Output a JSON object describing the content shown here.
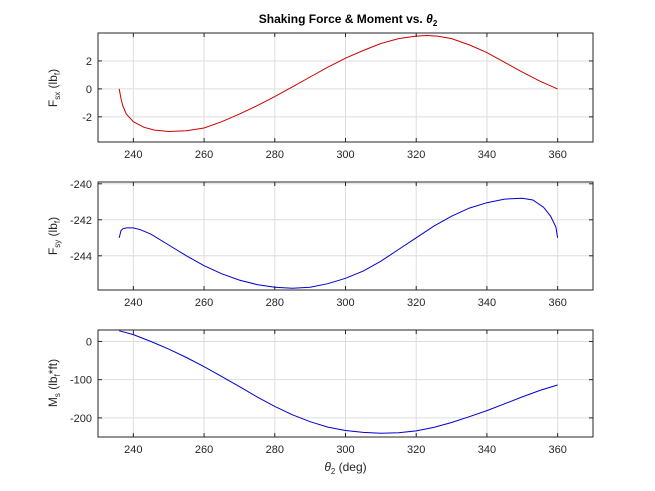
{
  "figure": {
    "title_main": "Shaking Force & Moment vs. ",
    "title_sym": "θ",
    "title_sub": "2"
  },
  "chart_data": [
    {
      "type": "line",
      "ylabel": {
        "main": "F",
        "sub": "sx",
        "rest_open": " (lb",
        "rest_sub": "f",
        "rest_close": ")"
      },
      "xlim": [
        230,
        370
      ],
      "ylim": [
        -3.8,
        4
      ],
      "yticks": [
        -2,
        0,
        2
      ],
      "ytick_labels": [
        "-2",
        "0",
        "2"
      ],
      "xticks": [
        240,
        260,
        280,
        300,
        320,
        340,
        360
      ],
      "xtick_labels": [
        "240",
        "260",
        "280",
        "300",
        "320",
        "340",
        "360"
      ],
      "grid": true,
      "series": [
        {
          "color": "#cc0000",
          "x": [
            236,
            236.5,
            237,
            238,
            240,
            243,
            246,
            250,
            255,
            260,
            265,
            270,
            275,
            280,
            285,
            290,
            295,
            300,
            305,
            310,
            315,
            320,
            323,
            326,
            330,
            335,
            340,
            345,
            350,
            355,
            360
          ],
          "y": [
            0,
            -0.7,
            -1.2,
            -1.8,
            -2.35,
            -2.75,
            -2.95,
            -3.05,
            -3.0,
            -2.8,
            -2.35,
            -1.8,
            -1.2,
            -0.55,
            0.15,
            0.85,
            1.55,
            2.2,
            2.75,
            3.25,
            3.6,
            3.78,
            3.82,
            3.78,
            3.6,
            3.15,
            2.6,
            1.9,
            1.2,
            0.55,
            0
          ]
        }
      ]
    },
    {
      "type": "line",
      "ylabel": {
        "main": "F",
        "sub": "sy",
        "rest_open": " (lb",
        "rest_sub": "f",
        "rest_close": ")"
      },
      "xlim": [
        230,
        370
      ],
      "ylim": [
        -245.9,
        -239.9
      ],
      "yticks": [
        -244,
        -242,
        -240
      ],
      "ytick_labels": [
        "-244",
        "-242",
        "-240"
      ],
      "xticks": [
        240,
        260,
        280,
        300,
        320,
        340,
        360
      ],
      "xtick_labels": [
        "240",
        "260",
        "280",
        "300",
        "320",
        "340",
        "360"
      ],
      "grid": true,
      "series": [
        {
          "color": "#0000cc",
          "x": [
            236,
            236.5,
            237,
            238,
            240,
            242,
            245,
            250,
            255,
            260,
            265,
            270,
            275,
            280,
            285,
            290,
            295,
            300,
            305,
            310,
            315,
            320,
            325,
            330,
            335,
            340,
            345,
            350,
            353,
            356,
            358,
            359.5,
            360
          ],
          "y": [
            -243,
            -242.6,
            -242.5,
            -242.45,
            -242.45,
            -242.55,
            -242.8,
            -243.4,
            -244.0,
            -244.55,
            -245.0,
            -245.35,
            -245.6,
            -245.75,
            -245.8,
            -245.75,
            -245.55,
            -245.25,
            -244.85,
            -244.3,
            -243.65,
            -243.0,
            -242.35,
            -241.8,
            -241.35,
            -241.05,
            -240.85,
            -240.8,
            -240.9,
            -241.3,
            -241.8,
            -242.4,
            -243
          ]
        }
      ]
    },
    {
      "type": "line",
      "ylabel": {
        "main": "M",
        "sub": "s",
        "rest_open": " (lb",
        "rest_sub": "f",
        "rest_close": "*ft)"
      },
      "xlabel": {
        "sym": "θ",
        "sub": "2",
        "rest": " (deg)"
      },
      "xlim": [
        230,
        370
      ],
      "ylim": [
        -250,
        30
      ],
      "yticks": [
        -200,
        -100,
        0
      ],
      "ytick_labels": [
        "-200",
        "-100",
        "0"
      ],
      "xticks": [
        240,
        260,
        280,
        300,
        320,
        340,
        360
      ],
      "xtick_labels": [
        "240",
        "260",
        "280",
        "300",
        "320",
        "340",
        "360"
      ],
      "grid": true,
      "series": [
        {
          "color": "#0000cc",
          "x": [
            236,
            240,
            245,
            250,
            255,
            260,
            265,
            270,
            275,
            280,
            285,
            290,
            295,
            300,
            305,
            310,
            315,
            320,
            325,
            330,
            335,
            340,
            345,
            350,
            355,
            360
          ],
          "y": [
            28,
            18,
            0,
            -20,
            -42,
            -66,
            -92,
            -118,
            -145,
            -170,
            -192,
            -210,
            -224,
            -233,
            -238,
            -240,
            -239,
            -234,
            -225,
            -212,
            -197,
            -181,
            -163,
            -145,
            -128,
            -114
          ]
        }
      ]
    }
  ]
}
